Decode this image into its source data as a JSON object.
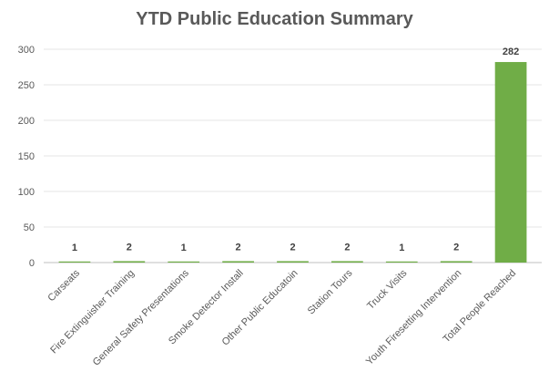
{
  "chart_data": {
    "type": "bar",
    "title": "YTD Public Education Summary",
    "xlabel": "",
    "ylabel": "",
    "categories": [
      "Carseats",
      "Fire Extinguisher Training",
      "General Safety Presentations",
      "Smoke Detector Install",
      "Other Public Educatoin",
      "Station Tours",
      "Truck Visits",
      "Youth Firesetting Intervention",
      "Total People Reached"
    ],
    "values": [
      1,
      2,
      1,
      2,
      2,
      2,
      1,
      2,
      282
    ],
    "data_labels": [
      "1",
      "2",
      "1",
      "2",
      "2",
      "2",
      "1",
      "2",
      "282"
    ],
    "ylim": [
      0,
      300
    ],
    "yticks": [
      "0",
      "50",
      "100",
      "150",
      "200",
      "250",
      "300"
    ],
    "grid": true,
    "legend": "none",
    "bar_color": "#70ad47"
  }
}
